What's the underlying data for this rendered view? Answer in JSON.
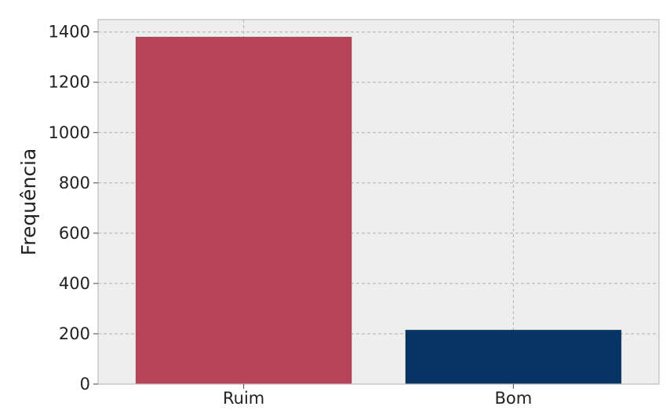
{
  "chart_data": {
    "type": "bar",
    "title": "",
    "xlabel": "",
    "ylabel": "Frequência",
    "categories": [
      "Ruim",
      "Bom"
    ],
    "values": [
      1380,
      215
    ],
    "colors": [
      "#b94459",
      "#063464"
    ],
    "yticks": [
      0,
      200,
      400,
      600,
      800,
      1000,
      1200,
      1400
    ],
    "ylim": [
      0,
      1449
    ],
    "grid": true,
    "background": "#eeeeee",
    "grid_color": "#b0b0b0",
    "legend": "none"
  }
}
